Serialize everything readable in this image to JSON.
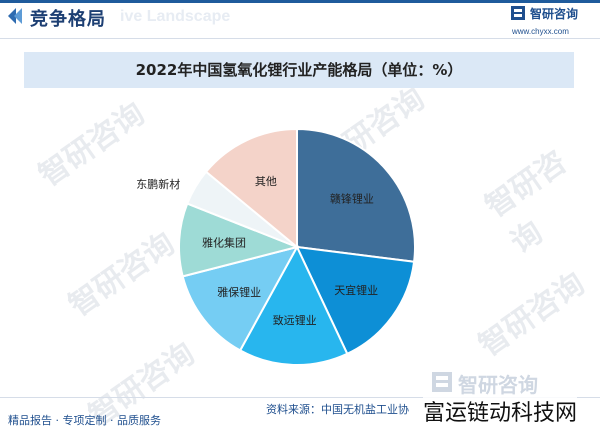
{
  "header": {
    "section_title": "竞争格局",
    "section_ghost": "ive Landscape",
    "brand_name": "智研咨询",
    "brand_url": "www.chyxx.com"
  },
  "watermarks": [
    "智研咨询",
    "智研咨询",
    "智研咨询",
    "智研咨询",
    "智研咨询",
    "智研咨询"
  ],
  "chart_data": {
    "type": "pie",
    "title": "2022年中国氢氧化锂行业产能格局（单位：%）",
    "slices": [
      {
        "label": "赣锋锂业",
        "value": 27.0,
        "color": "#3e6e99"
      },
      {
        "label": "天宜锂业",
        "value": 16.0,
        "color": "#0d8fd6"
      },
      {
        "label": "致远锂业",
        "value": 15.0,
        "color": "#28b6ee"
      },
      {
        "label": "雅保锂业",
        "value": 13.0,
        "color": "#75cdf3"
      },
      {
        "label": "雅化集团",
        "value": 10.0,
        "color": "#9edbd6"
      },
      {
        "label": "东鹏新材",
        "value": 5.0,
        "color": "#eef4f7"
      },
      {
        "label": "其他",
        "value": 14.0,
        "color": "#f4d3c9"
      }
    ],
    "start_angle_deg": 0
  },
  "footer": {
    "left": "精品报告 · 专项定制 · 品质服务",
    "source": "资料来源：中国无机盐工业协",
    "brand": "智研咨询",
    "overlay": "富运链动科技网"
  }
}
